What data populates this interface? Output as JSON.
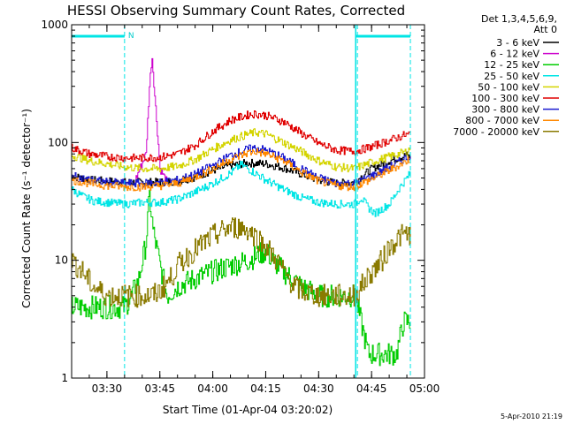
{
  "chart_data": {
    "type": "line",
    "title": "HESSI Observing Summary Count Rates, Corrected",
    "xlabel": "Start Time (01-Apr-04 03:20:02)",
    "ylabel": "Corrected Count Rate (s⁻¹ detector⁻¹)",
    "yscale": "log",
    "ylim": [
      1,
      1000
    ],
    "xlim_minutes_after_0320": [
      0,
      100
    ],
    "xticks": [
      {
        "label": "03:30",
        "minute": 10
      },
      {
        "label": "03:45",
        "minute": 25
      },
      {
        "label": "04:00",
        "minute": 40
      },
      {
        "label": "04:15",
        "minute": 55
      },
      {
        "label": "04:30",
        "minute": 70
      },
      {
        "label": "04:45",
        "minute": 85
      },
      {
        "label": "05:00",
        "minute": 100
      }
    ],
    "yticks": [
      {
        "label": "1",
        "value": 1
      },
      {
        "label": "10",
        "value": 10
      },
      {
        "label": "100",
        "value": 100
      },
      {
        "label": "1000",
        "value": 1000
      }
    ],
    "legend_header": [
      "Det 1,3,4,5,6,9,",
      "Att 0"
    ],
    "legend_position": "right",
    "markers": {
      "night_bars": [
        [
          0,
          15
        ],
        [
          80.5,
          96
        ]
      ],
      "dashed_lines": [
        15,
        81,
        96
      ],
      "solid_line": 80.5,
      "flag_label": "N"
    },
    "series": [
      {
        "name": "3 - 6 keV",
        "color": "#000000",
        "points": [
          [
            0,
            52
          ],
          [
            5,
            48
          ],
          [
            10,
            47
          ],
          [
            15,
            46
          ],
          [
            18,
            46
          ],
          [
            20,
            46
          ],
          [
            25,
            46
          ],
          [
            30,
            47
          ],
          [
            35,
            51
          ],
          [
            40,
            58
          ],
          [
            45,
            64
          ],
          [
            50,
            67
          ],
          [
            55,
            66
          ],
          [
            60,
            61
          ],
          [
            65,
            54
          ],
          [
            70,
            48
          ],
          [
            75,
            45
          ],
          [
            80,
            46
          ],
          [
            85,
            60
          ],
          [
            90,
            70
          ],
          [
            95,
            78
          ],
          [
            96,
            74
          ]
        ]
      },
      {
        "name": "6 - 12 keV",
        "color": "#cc00cc",
        "points": [
          [
            18,
            48
          ],
          [
            21,
            80
          ],
          [
            22,
            300
          ],
          [
            22.7,
            550
          ],
          [
            23.5,
            250
          ],
          [
            25,
            60
          ],
          [
            27,
            46
          ]
        ]
      },
      {
        "name": "12 - 25 keV",
        "color": "#00cc00",
        "points": [
          [
            0,
            4
          ],
          [
            10,
            4
          ],
          [
            15,
            4
          ],
          [
            17,
            5
          ],
          [
            19,
            7
          ],
          [
            21,
            14
          ],
          [
            22,
            35
          ],
          [
            23,
            18
          ],
          [
            25,
            9
          ],
          [
            27,
            5
          ],
          [
            30,
            6
          ],
          [
            35,
            7
          ],
          [
            40,
            8
          ],
          [
            45,
            9
          ],
          [
            50,
            10
          ],
          [
            55,
            12
          ],
          [
            57,
            10
          ],
          [
            60,
            8
          ],
          [
            65,
            6
          ],
          [
            70,
            5
          ],
          [
            75,
            5
          ],
          [
            80,
            5
          ],
          [
            81,
            4
          ],
          [
            84,
            1.6
          ],
          [
            92,
            1.6
          ],
          [
            94,
            3
          ],
          [
            96,
            3
          ]
        ]
      },
      {
        "name": "25 - 50 keV",
        "color": "#00e5e5",
        "points": [
          [
            0,
            40
          ],
          [
            3,
            35
          ],
          [
            6,
            32
          ],
          [
            10,
            31
          ],
          [
            15,
            30
          ],
          [
            20,
            31
          ],
          [
            25,
            31
          ],
          [
            30,
            33
          ],
          [
            35,
            38
          ],
          [
            40,
            45
          ],
          [
            45,
            55
          ],
          [
            48,
            65
          ],
          [
            52,
            55
          ],
          [
            55,
            48
          ],
          [
            60,
            40
          ],
          [
            65,
            34
          ],
          [
            70,
            31
          ],
          [
            75,
            30
          ],
          [
            80,
            30
          ],
          [
            82,
            34
          ],
          [
            84,
            28
          ],
          [
            86,
            25
          ],
          [
            90,
            30
          ],
          [
            93,
            42
          ],
          [
            96,
            55
          ]
        ]
      },
      {
        "name": "50 - 100 keV",
        "color": "#d4d400",
        "points": [
          [
            0,
            78
          ],
          [
            5,
            70
          ],
          [
            10,
            66
          ],
          [
            15,
            62
          ],
          [
            20,
            60
          ],
          [
            25,
            60
          ],
          [
            30,
            63
          ],
          [
            35,
            72
          ],
          [
            40,
            88
          ],
          [
            45,
            105
          ],
          [
            50,
            118
          ],
          [
            52,
            122
          ],
          [
            55,
            118
          ],
          [
            60,
            100
          ],
          [
            65,
            84
          ],
          [
            70,
            70
          ],
          [
            75,
            62
          ],
          [
            80,
            60
          ],
          [
            85,
            68
          ],
          [
            90,
            76
          ],
          [
            95,
            84
          ],
          [
            96,
            90
          ]
        ]
      },
      {
        "name": "100 - 300 keV",
        "color": "#e00000",
        "points": [
          [
            0,
            90
          ],
          [
            5,
            80
          ],
          [
            10,
            76
          ],
          [
            15,
            74
          ],
          [
            20,
            74
          ],
          [
            25,
            75
          ],
          [
            30,
            80
          ],
          [
            35,
            95
          ],
          [
            40,
            125
          ],
          [
            45,
            155
          ],
          [
            50,
            172
          ],
          [
            52,
            175
          ],
          [
            55,
            170
          ],
          [
            60,
            150
          ],
          [
            65,
            120
          ],
          [
            70,
            98
          ],
          [
            75,
            86
          ],
          [
            80,
            84
          ],
          [
            85,
            92
          ],
          [
            90,
            104
          ],
          [
            94,
            115
          ],
          [
            96,
            118
          ]
        ]
      },
      {
        "name": "300 - 800 keV",
        "color": "#1a1ad0",
        "points": [
          [
            0,
            52
          ],
          [
            5,
            48
          ],
          [
            10,
            46
          ],
          [
            15,
            45
          ],
          [
            20,
            45
          ],
          [
            25,
            46
          ],
          [
            30,
            48
          ],
          [
            35,
            54
          ],
          [
            40,
            64
          ],
          [
            45,
            78
          ],
          [
            50,
            88
          ],
          [
            52,
            90
          ],
          [
            55,
            86
          ],
          [
            60,
            74
          ],
          [
            65,
            60
          ],
          [
            70,
            50
          ],
          [
            75,
            45
          ],
          [
            80,
            45
          ],
          [
            85,
            52
          ],
          [
            90,
            62
          ],
          [
            95,
            75
          ],
          [
            96,
            78
          ]
        ]
      },
      {
        "name": "800 - 7000 keV",
        "color": "#ff8800",
        "points": [
          [
            0,
            48
          ],
          [
            5,
            45
          ],
          [
            10,
            43
          ],
          [
            15,
            42
          ],
          [
            20,
            42
          ],
          [
            25,
            43
          ],
          [
            30,
            45
          ],
          [
            35,
            51
          ],
          [
            40,
            60
          ],
          [
            45,
            72
          ],
          [
            50,
            82
          ],
          [
            52,
            84
          ],
          [
            55,
            80
          ],
          [
            60,
            70
          ],
          [
            65,
            56
          ],
          [
            70,
            47
          ],
          [
            75,
            43
          ],
          [
            80,
            42
          ],
          [
            85,
            49
          ],
          [
            90,
            58
          ],
          [
            95,
            70
          ],
          [
            96,
            73
          ]
        ]
      },
      {
        "name": "7000 - 20000 keV",
        "color": "#8a7a00",
        "points": [
          [
            0,
            10
          ],
          [
            3,
            8
          ],
          [
            6,
            6
          ],
          [
            10,
            5
          ],
          [
            15,
            5
          ],
          [
            20,
            5
          ],
          [
            23,
            5
          ],
          [
            25,
            5.5
          ],
          [
            28,
            7
          ],
          [
            30,
            9
          ],
          [
            33,
            11
          ],
          [
            36,
            13
          ],
          [
            40,
            16
          ],
          [
            43,
            18
          ],
          [
            45,
            19
          ],
          [
            48,
            19
          ],
          [
            50,
            18
          ],
          [
            53,
            15
          ],
          [
            55,
            13
          ],
          [
            58,
            10
          ],
          [
            60,
            8
          ],
          [
            63,
            6
          ],
          [
            65,
            5.5
          ],
          [
            70,
            5
          ],
          [
            75,
            5
          ],
          [
            80,
            5
          ],
          [
            82,
            6
          ],
          [
            85,
            8
          ],
          [
            88,
            10
          ],
          [
            90,
            13
          ],
          [
            93,
            16
          ],
          [
            96,
            17
          ]
        ]
      }
    ]
  },
  "footer_date": "5-Apr-2010 21:19"
}
